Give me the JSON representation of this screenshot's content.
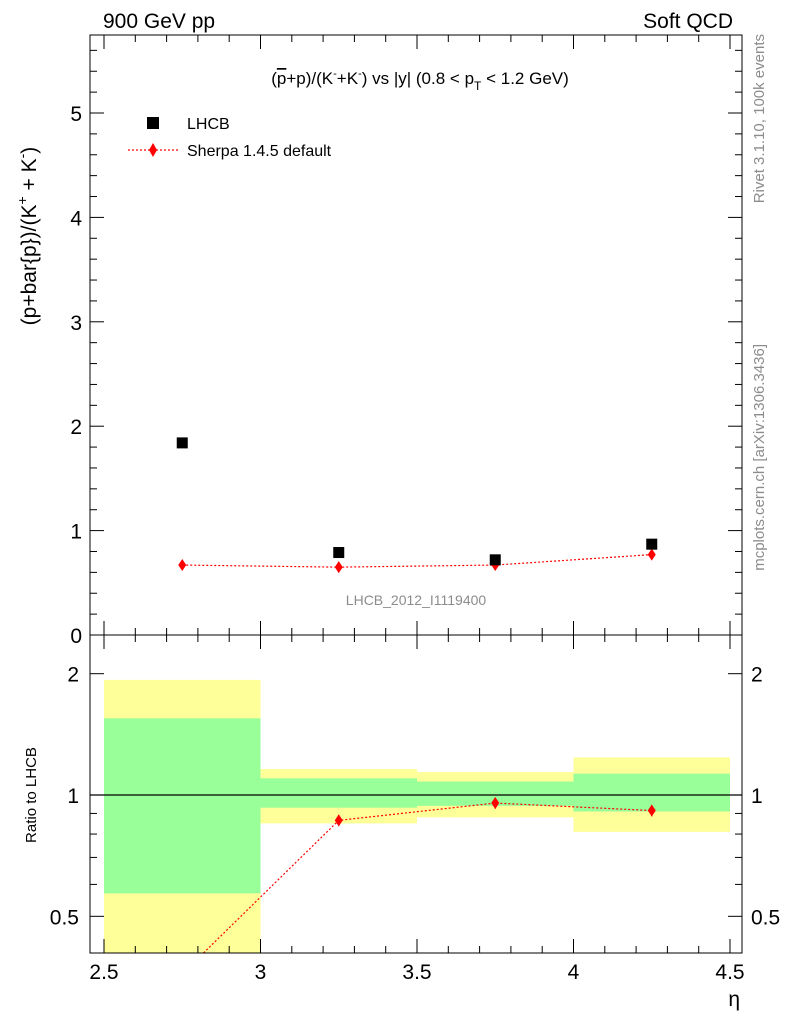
{
  "header": {
    "left": "900 GeV pp",
    "right": "Soft QCD"
  },
  "side_labels": {
    "rivet": "Rivet 3.1.10,  100k events",
    "source": "mcplots.cern.ch [arXiv:1306.3436]"
  },
  "colors": {
    "data": "#000000",
    "mc": "#ff0000",
    "band_inner": "#99ff99",
    "band_outer": "#ffff99",
    "watermark": "#8c8c8c"
  },
  "chart_data": [
    {
      "type": "scatter",
      "title_parts": [
        "(",
        "p",
        "+p)/(K",
        "-",
        "+K",
        "-",
        ") vs |y| (0.8 < p",
        "T",
        " < 1.2 GeV)"
      ],
      "ylabel": "(p+bar{p})/(K",
      "ylabel_sup": "+",
      "ylabel_mid": " + K",
      "ylabel_sup2": "-",
      "ylabel_end": ")",
      "watermark": "LHCB_2012_I1119400",
      "xlim": [
        2.5,
        4.5
      ],
      "ylim": [
        0,
        5.8
      ],
      "y_tick_labels": [
        "0",
        "1",
        "2",
        "3",
        "4",
        "5"
      ],
      "legend_position": "top-left",
      "series": [
        {
          "name": "LHCB",
          "marker": "square",
          "x": [
            2.75,
            3.25,
            3.75,
            4.25
          ],
          "y": [
            1.84,
            0.79,
            0.72,
            0.87
          ]
        },
        {
          "name": "Sherpa 1.4.5 default",
          "marker": "diamond",
          "line": "dotted",
          "x": [
            2.75,
            3.25,
            3.75,
            4.25
          ],
          "y": [
            0.67,
            0.65,
            0.67,
            0.77
          ]
        }
      ]
    },
    {
      "type": "line",
      "ylabel": "Ratio to LHCB",
      "xlabel": "η",
      "xlim": [
        2.5,
        4.5
      ],
      "ylim": [
        0.4,
        2.3
      ],
      "yscale": "log",
      "x_tick_labels": [
        "2.5",
        "3",
        "3.5",
        "4",
        "4.5"
      ],
      "y_tick_labels": [
        "0.5",
        "1",
        "2"
      ],
      "reference_line": 1,
      "bands": [
        {
          "x": [
            2.5,
            3.0
          ],
          "inner": [
            0.57,
            1.55
          ],
          "outer": [
            0.3,
            1.93
          ]
        },
        {
          "x": [
            3.0,
            3.5
          ],
          "inner": [
            0.93,
            1.1
          ],
          "outer": [
            0.85,
            1.16
          ]
        },
        {
          "x": [
            3.5,
            4.0
          ],
          "inner": [
            0.94,
            1.08
          ],
          "outer": [
            0.88,
            1.14
          ]
        },
        {
          "x": [
            4.0,
            4.5
          ],
          "inner": [
            0.91,
            1.13
          ],
          "outer": [
            0.81,
            1.24
          ]
        }
      ],
      "series": [
        {
          "name": "Sherpa 1.4.5 default",
          "marker": "diamond",
          "line": "dotted",
          "x": [
            2.75,
            3.25,
            3.75,
            4.25
          ],
          "y": [
            0.36,
            0.865,
            0.955,
            0.915
          ],
          "err": [
            0.0,
            0.028,
            0.03,
            0.03
          ]
        }
      ]
    }
  ]
}
